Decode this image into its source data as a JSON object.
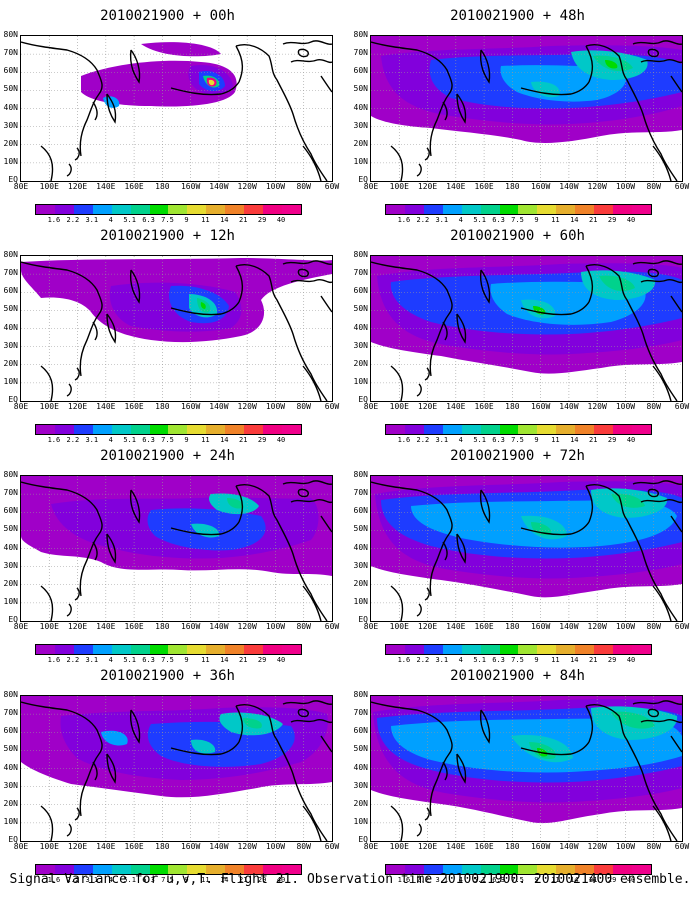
{
  "panels": [
    {
      "title": "2010021900 + 00h",
      "stage": 0
    },
    {
      "title": "2010021900 + 48h",
      "stage": 4
    },
    {
      "title": "2010021900 + 12h",
      "stage": 1
    },
    {
      "title": "2010021900 + 60h",
      "stage": 5
    },
    {
      "title": "2010021900 + 24h",
      "stage": 2
    },
    {
      "title": "2010021900 + 72h",
      "stage": 6
    },
    {
      "title": "2010021900 + 36h",
      "stage": 3
    },
    {
      "title": "2010021900 + 84h",
      "stage": 7
    }
  ],
  "lat_labels": [
    "80N",
    "70N",
    "60N",
    "50N",
    "40N",
    "30N",
    "20N",
    "10N",
    "EQ"
  ],
  "lon_labels": [
    "80E",
    "100E",
    "120E",
    "140E",
    "160E",
    "180",
    "160W",
    "140W",
    "120W",
    "100W",
    "80W",
    "60W"
  ],
  "colorbar": {
    "labels": [
      "1.6",
      "2.2",
      "3.1",
      "4",
      "5.1",
      "6.3",
      "7.5",
      "9",
      "11",
      "14",
      "21",
      "29",
      "40"
    ],
    "colors": [
      "#a000c8",
      "#8200dc",
      "#1e3cff",
      "#00a0ff",
      "#00c8c8",
      "#00d28c",
      "#00dc00",
      "#a0e632",
      "#e6dc32",
      "#e6af2d",
      "#f08228",
      "#fa3c3c",
      "#f00082"
    ]
  },
  "caption": "Signal Variance for u,v,T. Flight 21. Observation time 2010021900. 2010021400 ensemble."
}
